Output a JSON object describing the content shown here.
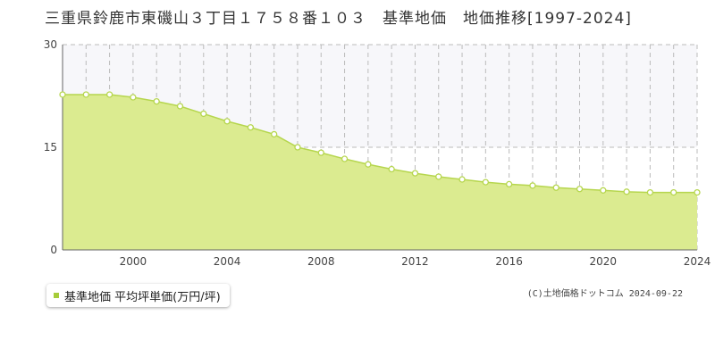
{
  "chart_data": {
    "type": "area",
    "title": "三重県鈴鹿市東磯山３丁目１７５８番１０３　基準地価　地価推移[1997-2024]",
    "xlabel": "",
    "ylabel": "",
    "x": [
      1997,
      1998,
      1999,
      2000,
      2001,
      2002,
      2003,
      2004,
      2005,
      2006,
      2007,
      2008,
      2009,
      2010,
      2011,
      2012,
      2013,
      2014,
      2015,
      2016,
      2017,
      2018,
      2019,
      2020,
      2021,
      2022,
      2023,
      2024
    ],
    "series": [
      {
        "name": "基準地価 平均坪単価(万円/坪)",
        "values": [
          22.7,
          22.7,
          22.7,
          22.3,
          21.7,
          21.0,
          19.9,
          18.8,
          17.9,
          16.9,
          15.0,
          14.2,
          13.3,
          12.5,
          11.8,
          11.2,
          10.7,
          10.3,
          9.9,
          9.6,
          9.4,
          9.1,
          8.9,
          8.7,
          8.5,
          8.4,
          8.4,
          8.4
        ]
      }
    ],
    "xlim": [
      1997,
      2024
    ],
    "ylim": [
      0,
      30
    ],
    "y_ticks": [
      "0",
      "15",
      "30"
    ],
    "x_ticks": [
      "2000",
      "2004",
      "2008",
      "2012",
      "2016",
      "2020",
      "2024"
    ],
    "grid": true,
    "legend": "bottom-left",
    "colors": {
      "fill": "#dbeb90",
      "line": "#b6d64e",
      "marker_stroke": "#b6d64e",
      "band": "#f7f7fa"
    }
  },
  "credit": "(C)土地価格ドットコム 2024-09-22"
}
